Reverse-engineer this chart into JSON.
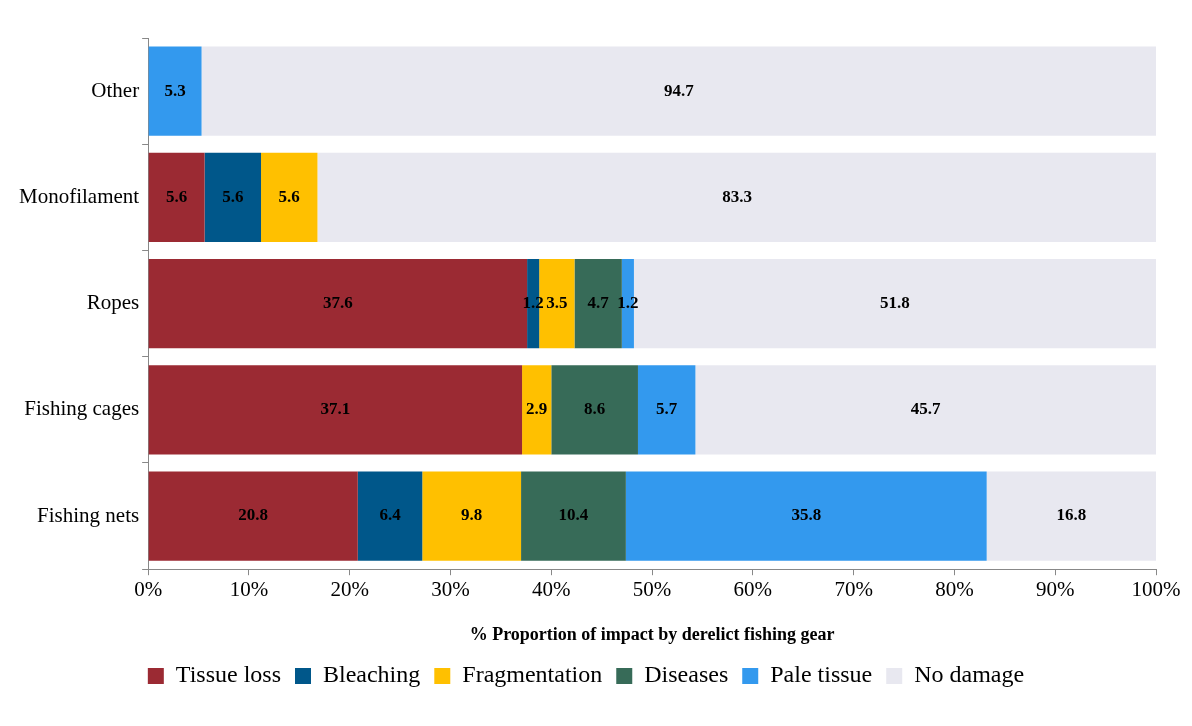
{
  "chart_data": {
    "type": "bar",
    "orientation": "horizontal",
    "stacked": true,
    "xlabel": "% Proportion of impact by derelict fishing gear",
    "categories": [
      "Other",
      "Monofilament",
      "Ropes",
      "Fishing cages",
      "Fishing nets"
    ],
    "series": [
      {
        "name": "Tissue loss",
        "color": "#9b2a33",
        "values": [
          null,
          5.6,
          37.6,
          37.1,
          20.8
        ]
      },
      {
        "name": "Bleaching",
        "color": "#00578a",
        "values": [
          null,
          5.6,
          1.2,
          null,
          6.4
        ]
      },
      {
        "name": "Fragmentation",
        "color": "#ffc000",
        "values": [
          null,
          5.6,
          3.5,
          2.9,
          9.8
        ]
      },
      {
        "name": "Diseases",
        "color": "#376b58",
        "values": [
          null,
          null,
          4.7,
          8.6,
          10.4
        ]
      },
      {
        "name": "Pale tissue",
        "color": "#3399ee",
        "values": [
          5.3,
          null,
          1.2,
          5.7,
          35.8
        ]
      },
      {
        "name": "No damage",
        "color": "#e8e8f0",
        "values": [
          94.7,
          83.3,
          51.8,
          45.7,
          16.8
        ]
      }
    ],
    "xlim": [
      0,
      100
    ],
    "xticks": [
      {
        "value": 0,
        "label": "0%"
      },
      {
        "value": 10,
        "label": "10%"
      },
      {
        "value": 20,
        "label": "20%"
      },
      {
        "value": 30,
        "label": "30%"
      },
      {
        "value": 40,
        "label": "40%"
      },
      {
        "value": 50,
        "label": "50%"
      },
      {
        "value": 60,
        "label": "60%"
      },
      {
        "value": 70,
        "label": "70%"
      },
      {
        "value": 80,
        "label": "80%"
      },
      {
        "value": 90,
        "label": "90%"
      },
      {
        "value": 100,
        "label": "100%"
      }
    ],
    "data_labels": true,
    "grid": false,
    "legend": "bottom"
  }
}
